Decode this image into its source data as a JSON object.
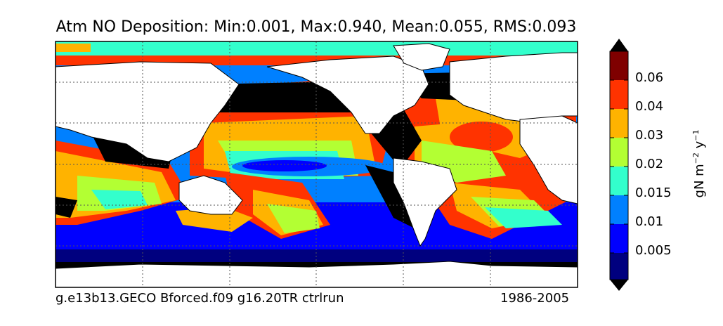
{
  "title": "Atm NO Deposition: Min:0.001, Max:0.940, Mean:0.055, RMS:0.093",
  "caption_left": "g.e13b13.GECO Bforced.f09 g16.20TR ctrlrun",
  "caption_right": "1986-2005",
  "colorbar": {
    "ticks": [
      "0.005",
      "0.01",
      "0.015",
      "0.02",
      "0.03",
      "0.04",
      "0.06"
    ],
    "unit_base": "gN m",
    "unit_exp1": "−2",
    "unit_mid": " y",
    "unit_exp2": "−1",
    "colors": [
      "#00007f",
      "#0000ff",
      "#0080ff",
      "#33ffcc",
      "#b3ff33",
      "#ffb300",
      "#ff3300",
      "#7f0000"
    ],
    "under_color": "#000000",
    "over_color": "#000000"
  },
  "map": {
    "land_color": "#ffffff",
    "high_deposition_color": "#000000",
    "grid_style": "dotted"
  }
}
